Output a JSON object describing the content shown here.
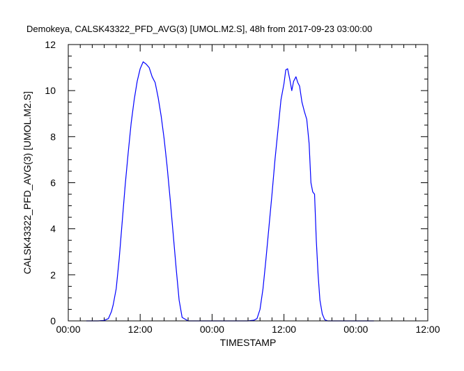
{
  "chart_data": {
    "type": "line",
    "title": "Demokeya, CALSK43322_PFD_AVG(3) [UMOL.M2.S], 48h from  2017-09-23 03:00:00",
    "xlabel": "TIMESTAMP",
    "ylabel": "CALSK43322_PFD_AVG(3) [UMOL.M2.S]",
    "x_unit": "hours",
    "xlim": [
      0,
      60
    ],
    "ylim": [
      0,
      12
    ],
    "x_ticks": [
      {
        "x": 0,
        "label": "00:00"
      },
      {
        "x": 12,
        "label": "12:00"
      },
      {
        "x": 24,
        "label": "00:00"
      },
      {
        "x": 36,
        "label": "12:00"
      },
      {
        "x": 48,
        "label": "00:00"
      },
      {
        "x": 60,
        "label": "12:00"
      }
    ],
    "y_ticks": [
      0,
      2,
      4,
      6,
      8,
      10,
      12
    ],
    "grid": false,
    "color": "#0000ff",
    "series": [
      {
        "x": [
          3,
          4,
          5,
          6,
          6.7,
          7.2,
          7.5,
          8,
          8.5,
          9,
          9.5,
          10,
          10.5,
          11,
          11.5,
          12,
          12.5,
          13,
          13.5,
          14,
          14.5,
          15,
          15.5,
          16,
          16.5,
          17,
          17.5,
          18,
          18.5,
          19,
          20,
          22,
          25,
          28,
          30,
          31,
          31.5,
          32,
          32.5,
          33,
          33.5,
          34,
          34.5,
          35,
          35.5,
          36,
          36.3,
          36.6,
          37,
          37.3,
          37.6,
          38,
          38.3,
          38.6,
          39,
          39.4,
          39.8,
          40.2,
          40.5,
          40.8,
          41.1,
          41.4,
          41.7,
          42,
          42.4,
          42.8,
          43.3,
          44,
          46,
          48,
          50,
          51
        ],
        "y": [
          0,
          0,
          0,
          0.02,
          0.1,
          0.4,
          0.7,
          1.4,
          2.7,
          4.3,
          5.9,
          7.3,
          8.6,
          9.6,
          10.4,
          10.95,
          11.25,
          11.15,
          11.0,
          10.6,
          10.35,
          9.7,
          8.9,
          7.9,
          6.7,
          5.3,
          3.8,
          2.3,
          0.9,
          0.15,
          0,
          0,
          0,
          0,
          0,
          0.03,
          0.1,
          0.5,
          1.4,
          2.7,
          4.1,
          5.5,
          7.0,
          8.3,
          9.6,
          10.3,
          10.9,
          10.95,
          10.45,
          10.0,
          10.4,
          10.6,
          10.35,
          10.2,
          9.5,
          9.1,
          8.75,
          7.7,
          6.0,
          5.6,
          5.5,
          3.5,
          2.0,
          0.9,
          0.3,
          0.05,
          0,
          0,
          0,
          0,
          0,
          0
        ]
      }
    ]
  }
}
